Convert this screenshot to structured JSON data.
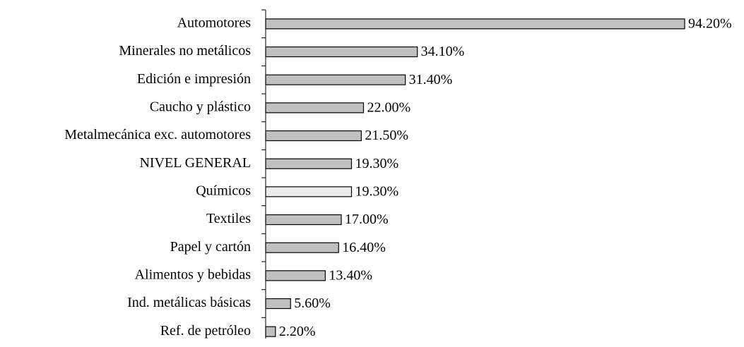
{
  "chart_data": {
    "type": "hbar",
    "categories": [
      "Automotores",
      "Minerales no metálicos",
      "Edición e impresión",
      "Caucho y plástico",
      "Metalmecánica exc. automotores",
      "NIVEL GENERAL",
      "Químicos",
      "Textiles",
      "Papel y cartón",
      "Alimentos y bebidas",
      "Ind. metálicas básicas",
      "Ref. de petróleo"
    ],
    "values": [
      94.2,
      34.1,
      31.4,
      22.0,
      21.5,
      19.3,
      19.3,
      17.0,
      16.4,
      13.4,
      5.6,
      2.2
    ],
    "value_labels": [
      "94.20%",
      "34.10%",
      "31.40%",
      "22.00%",
      "21.50%",
      "19.30%",
      "19.30%",
      "17.00%",
      "16.40%",
      "13.40%",
      "5.60%",
      "2.20%"
    ],
    "colors": [
      "#c0c0c0",
      "#c0c0c0",
      "#c0c0c0",
      "#c0c0c0",
      "#c0c0c0",
      "#c0c0c0",
      "#ebebeb",
      "#c0c0c0",
      "#c0c0c0",
      "#c0c0c0",
      "#c0c0c0",
      "#c0c0c0"
    ]
  }
}
